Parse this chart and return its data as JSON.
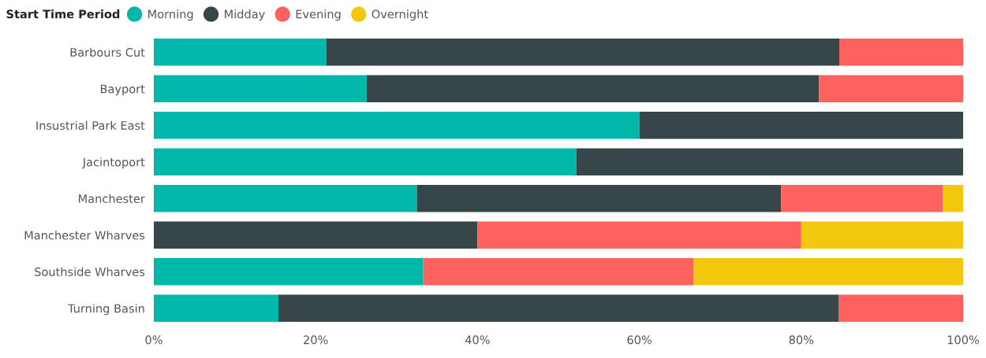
{
  "chart_data": {
    "type": "bar",
    "orientation": "horizontal",
    "stacked": true,
    "legend_title": "Start Time Period",
    "legend": "top left",
    "grid": false,
    "categories": [
      "Barbours Cut",
      "Bayport",
      "Insustrial Park East",
      "Jacintoport",
      "Manchester",
      "Manchester Wharves",
      "Southside Wharves",
      "Turning Basin"
    ],
    "series": [
      {
        "name": "Morning",
        "color": "#01b8aa",
        "values": [
          21.3,
          26.3,
          60,
          52.2,
          32.5,
          0,
          33.3,
          15.4
        ]
      },
      {
        "name": "Midday",
        "color": "#374649",
        "values": [
          63.4,
          55.9,
          40,
          47.8,
          45,
          40,
          0,
          69.2
        ]
      },
      {
        "name": "Evening",
        "color": "#fd625e",
        "values": [
          15.3,
          17.8,
          0,
          0,
          20,
          40,
          33.4,
          15.4
        ]
      },
      {
        "name": "Overnight",
        "color": "#f2c80f",
        "values": [
          0,
          0,
          0,
          0,
          2.5,
          20,
          33.3,
          0
        ]
      }
    ],
    "xlim": [
      0,
      100
    ],
    "xticks": [
      {
        "value": 0,
        "label": "0%"
      },
      {
        "value": 20,
        "label": "20%"
      },
      {
        "value": 40,
        "label": "40%"
      },
      {
        "value": 60,
        "label": "60%"
      },
      {
        "value": 80,
        "label": "80%"
      },
      {
        "value": 100,
        "label": "100%"
      }
    ]
  }
}
